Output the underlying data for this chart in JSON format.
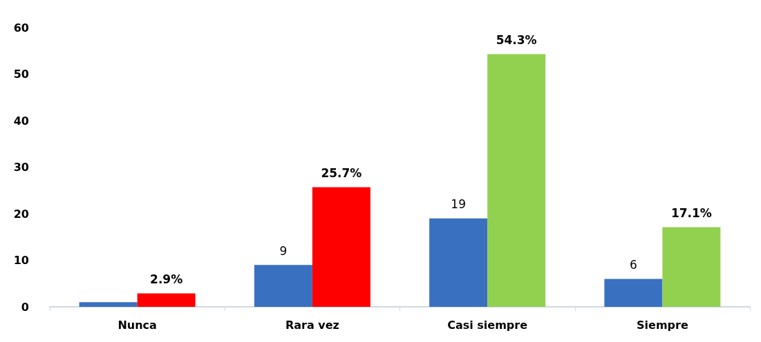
{
  "chart_data": {
    "type": "bar",
    "categories": [
      "Nunca",
      "Rara vez",
      "Casi siempre",
      "Siempre"
    ],
    "series": [
      {
        "color": "#3a70c0",
        "values": [
          1,
          9,
          19,
          6
        ],
        "value_labels": [
          null,
          "9",
          "19",
          "6"
        ]
      },
      {
        "colors": [
          "#ff0000",
          "#ff0000",
          "#92d050",
          "#92d050"
        ],
        "values": [
          2.9,
          25.7,
          54.3,
          17.1
        ],
        "value_labels": [
          "2.9%",
          "25.7%",
          "54.3%",
          "17.1%"
        ]
      }
    ],
    "ylim": [
      0,
      60
    ],
    "yticks": [
      0,
      10,
      20,
      30,
      40,
      50,
      60
    ],
    "grid": false,
    "legend": false
  }
}
